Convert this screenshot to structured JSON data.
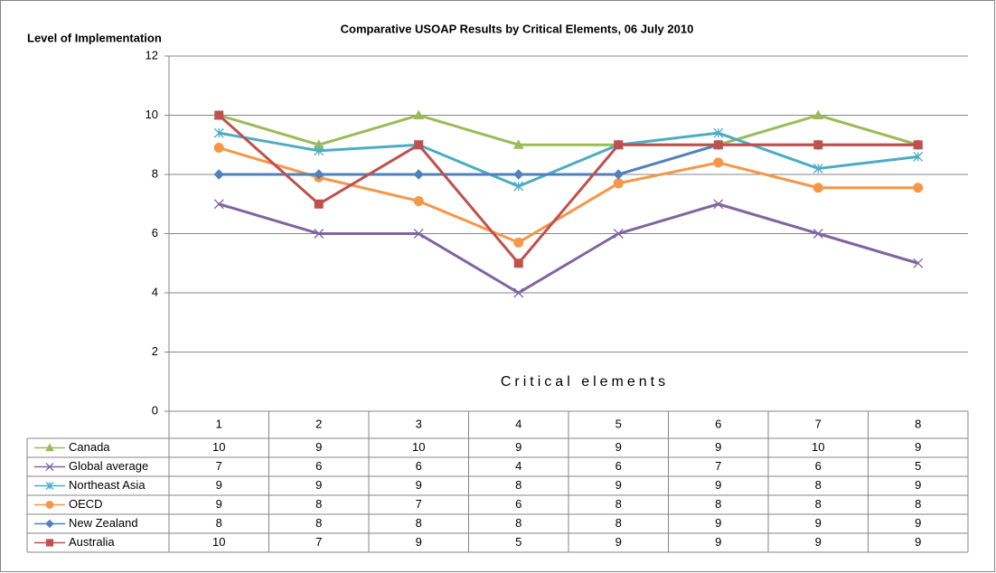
{
  "chart_data": {
    "type": "line",
    "title": "Comparative USOAP Results by Critical Elements,  06 July 2010",
    "ylabel": "Level of Implementation",
    "xlabel": "Critical elements",
    "categories": [
      "1",
      "2",
      "3",
      "4",
      "5",
      "6",
      "7",
      "8"
    ],
    "ylim": [
      0,
      12
    ],
    "yticks": [
      0,
      2,
      4,
      6,
      8,
      10,
      12
    ],
    "grid": true,
    "series": [
      {
        "name": "Canada",
        "color": "#9bbb59",
        "marker": "triangle",
        "values": [
          10,
          9,
          10,
          9,
          9,
          9,
          10,
          9
        ]
      },
      {
        "name": "Global average",
        "color": "#8064a2",
        "marker": "x",
        "values": [
          7,
          6,
          6,
          4,
          6,
          7,
          6,
          5
        ]
      },
      {
        "name": "Northeast Asia",
        "color": "#4bacc6",
        "marker": "star",
        "values": [
          9.4,
          8.8,
          9.0,
          7.6,
          9.0,
          9.4,
          8.2,
          8.6
        ],
        "value_labels": [
          "9",
          "9",
          "9",
          "8",
          "9",
          "9",
          "8",
          "9"
        ]
      },
      {
        "name": "OECD",
        "color": "#f79646",
        "marker": "circle",
        "values": [
          8.9,
          7.9,
          7.1,
          5.7,
          7.7,
          8.4,
          7.55,
          7.55
        ],
        "value_labels": [
          "9",
          "8",
          "7",
          "6",
          "8",
          "8",
          "8",
          "8"
        ]
      },
      {
        "name": "New Zealand",
        "color": "#4f81bd",
        "marker": "diamond",
        "values": [
          8,
          8,
          8,
          8,
          8,
          9,
          9,
          9
        ]
      },
      {
        "name": "Australia",
        "color": "#c0504d",
        "marker": "square",
        "values": [
          10,
          7,
          9,
          5,
          9,
          9,
          9,
          9
        ]
      }
    ]
  }
}
